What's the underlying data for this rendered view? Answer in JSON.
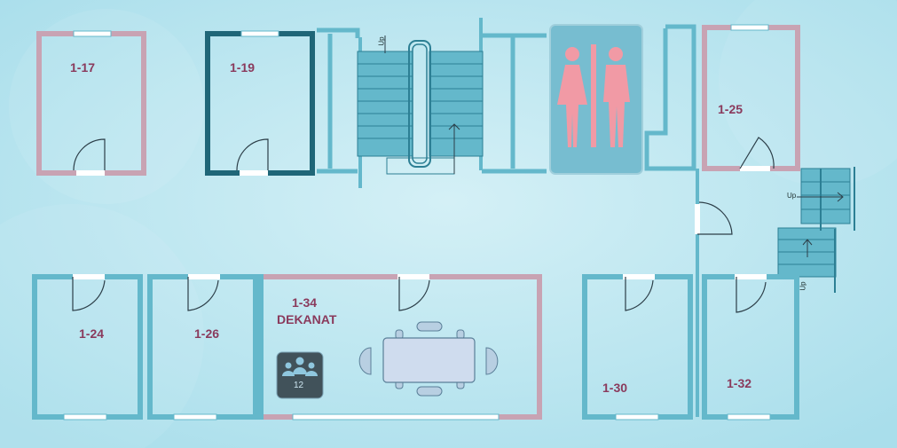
{
  "rooms": {
    "r117": "1-17",
    "r119": "1-19",
    "r125": "1-25",
    "r124": "1-24",
    "r126": "1-26",
    "r134": "1-34",
    "r134_name": "DEKANAT",
    "r130": "1-30",
    "r132": "1-32"
  },
  "stairs": {
    "up_label": "Up"
  },
  "meeting_icon": {
    "count": "12"
  },
  "colors": {
    "background": "#bfe7f1",
    "wall_blue": "#64b8cb",
    "wall_pink": "#c8a3b3",
    "wall_dark": "#1f6678",
    "label": "#8a3a5c",
    "toilet_sign": "#77bdd0",
    "toilet_figures": "#f19aa5"
  },
  "icons": [
    "door-swing-icon",
    "window-icon",
    "toilet-sign-icon",
    "meeting-group-icon",
    "stair-arrow-icon"
  ]
}
